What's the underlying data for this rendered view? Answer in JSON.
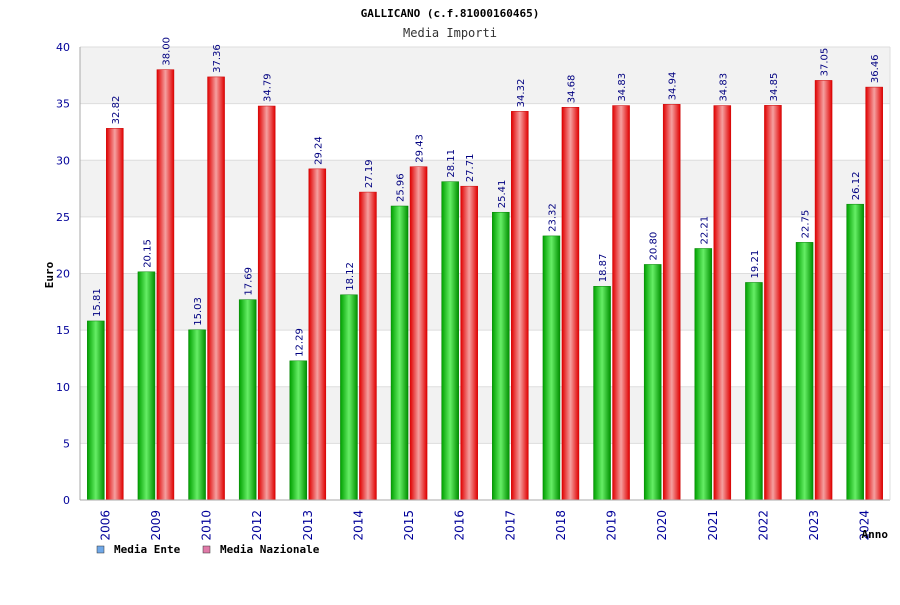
{
  "chart_data": {
    "type": "bar",
    "title": "GALLICANO (c.f.81000160465)",
    "subtitle": "Media Importi",
    "xlabel": "Anno",
    "ylabel": "Euro",
    "ylim": [
      0,
      40
    ],
    "yticks": [
      0,
      5,
      10,
      15,
      20,
      25,
      30,
      35,
      40
    ],
    "grid": true,
    "legend_position": "bottom-left",
    "categories": [
      "2006",
      "2009",
      "2010",
      "2012",
      "2013",
      "2014",
      "2015",
      "2016",
      "2017",
      "2018",
      "2019",
      "2020",
      "2021",
      "2022",
      "2023",
      "2024"
    ],
    "series": [
      {
        "name": "Media Ente",
        "color": "#00b000",
        "legend_color": "#6fa8e8",
        "values": [
          15.81,
          20.15,
          15.03,
          17.69,
          12.29,
          18.12,
          25.96,
          28.11,
          25.41,
          23.32,
          18.87,
          20.8,
          22.21,
          19.21,
          22.75,
          26.12
        ],
        "labels": [
          "15.81",
          "20.15",
          "15.03",
          "17.69",
          "12.29",
          "18.12",
          "25.96",
          "28.11",
          "25.41",
          "23.32",
          "18.87",
          "20.80",
          "22.21",
          "19.21",
          "22.75",
          "26.12"
        ]
      },
      {
        "name": "Media Nazionale",
        "color": "#ee1111",
        "legend_color": "#e07aa8",
        "values": [
          32.82,
          38.0,
          37.36,
          34.79,
          29.24,
          27.19,
          29.43,
          27.71,
          34.32,
          34.68,
          34.83,
          34.94,
          34.83,
          34.85,
          37.05,
          36.46
        ],
        "labels": [
          "32.82",
          "38.00",
          "37.36",
          "34.79",
          "29.24",
          "27.19",
          "29.43",
          "27.71",
          "34.32",
          "34.68",
          "34.83",
          "34.94",
          "34.83",
          "34.85",
          "37.05",
          "36.46"
        ]
      }
    ]
  }
}
